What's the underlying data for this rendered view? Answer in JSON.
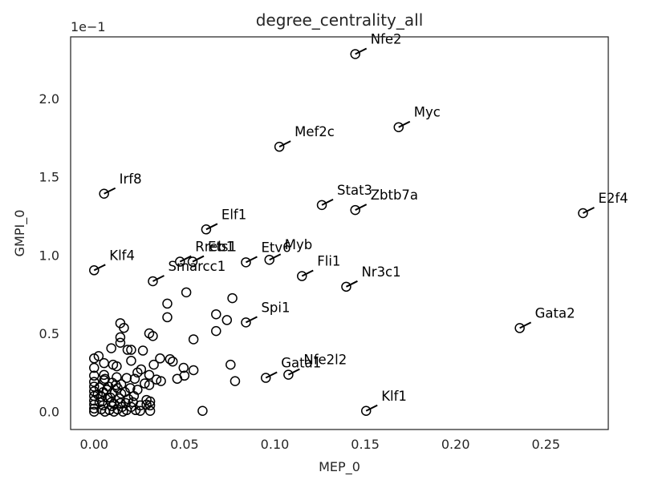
{
  "chart_data": {
    "type": "scatter",
    "title": "degree_centrality_all",
    "xlabel": "MEP_0",
    "ylabel": "GMPI_0",
    "y_offset_text": "1e−1",
    "xlim": [
      -0.013,
      0.2845
    ],
    "ylim": [
      -0.0114,
      0.2394
    ],
    "x_ticks": [
      0.0,
      0.05,
      0.1,
      0.15,
      0.2,
      0.25
    ],
    "x_tick_labels": [
      "0.00",
      "0.05",
      "0.10",
      "0.15",
      "0.20",
      "0.25"
    ],
    "y_ticks": [
      0.0,
      0.05,
      0.1,
      0.15,
      0.2
    ],
    "y_tick_labels": [
      "0.0",
      "0.5",
      "1.0",
      "1.5",
      "2.0"
    ],
    "grid": false,
    "marker": "open-circle",
    "marker_color": "#000000",
    "labeled_points": [
      {
        "label": "Nfe2",
        "x": 0.1445,
        "y": 0.2284
      },
      {
        "label": "Myc",
        "x": 0.1685,
        "y": 0.1817
      },
      {
        "label": "Mef2c",
        "x": 0.1025,
        "y": 0.1692
      },
      {
        "label": "Irf8",
        "x": 0.0055,
        "y": 0.1392
      },
      {
        "label": "Stat3",
        "x": 0.126,
        "y": 0.132
      },
      {
        "label": "Zbtb7a",
        "x": 0.1445,
        "y": 0.1288
      },
      {
        "label": "E2f4",
        "x": 0.2705,
        "y": 0.1268
      },
      {
        "label": "Elf1",
        "x": 0.062,
        "y": 0.1164
      },
      {
        "label": "Rreb1",
        "x": 0.0475,
        "y": 0.0958
      },
      {
        "label": "Ets1",
        "x": 0.0545,
        "y": 0.0958
      },
      {
        "label": "Etv6",
        "x": 0.084,
        "y": 0.0954
      },
      {
        "label": "Myb",
        "x": 0.097,
        "y": 0.097
      },
      {
        "label": "Klf4",
        "x": 0.0,
        "y": 0.0903
      },
      {
        "label": "Smarcc1",
        "x": 0.0325,
        "y": 0.0833
      },
      {
        "label": "Fli1",
        "x": 0.115,
        "y": 0.0866
      },
      {
        "label": "Nr3c1",
        "x": 0.1395,
        "y": 0.0798
      },
      {
        "label": "Spi1",
        "x": 0.084,
        "y": 0.057
      },
      {
        "label": "Gata2",
        "x": 0.2355,
        "y": 0.0534
      },
      {
        "label": "Gata1",
        "x": 0.095,
        "y": 0.0216
      },
      {
        "label": "Nfe2l2",
        "x": 0.1075,
        "y": 0.0236
      },
      {
        "label": "Klf1",
        "x": 0.1505,
        "y": 0.0005
      }
    ],
    "other_points": [
      [
        0.0405,
        0.069
      ],
      [
        0.051,
        0.0762
      ],
      [
        0.0765,
        0.0725
      ],
      [
        0.0675,
        0.0622
      ],
      [
        0.0405,
        0.0603
      ],
      [
        0.0735,
        0.0585
      ],
      [
        0.0145,
        0.0565
      ],
      [
        0.0165,
        0.0535
      ],
      [
        0.0305,
        0.05
      ],
      [
        0.0325,
        0.0483
      ],
      [
        0.0145,
        0.0475
      ],
      [
        0.0675,
        0.0515
      ],
      [
        0.055,
        0.0462
      ],
      [
        0.0145,
        0.044
      ],
      [
        0.0095,
        0.0405
      ],
      [
        0.0185,
        0.0395
      ],
      [
        0.0205,
        0.0395
      ],
      [
        0.027,
        0.039
      ],
      [
        0.0,
        0.034
      ],
      [
        0.0025,
        0.0355
      ],
      [
        0.0365,
        0.034
      ],
      [
        0.042,
        0.0335
      ],
      [
        0.0435,
        0.032
      ],
      [
        0.0205,
        0.0325
      ],
      [
        0.0055,
        0.031
      ],
      [
        0.0105,
        0.03
      ],
      [
        0.0125,
        0.029
      ],
      [
        0.033,
        0.03
      ],
      [
        0.0,
        0.028
      ],
      [
        0.0495,
        0.028
      ],
      [
        0.026,
        0.027
      ],
      [
        0.055,
        0.0265
      ],
      [
        0.024,
        0.025
      ],
      [
        0.0305,
        0.0235
      ],
      [
        0.0755,
        0.03
      ],
      [
        0.0,
        0.023
      ],
      [
        0.0055,
        0.0235
      ],
      [
        0.0125,
        0.022
      ],
      [
        0.018,
        0.0215
      ],
      [
        0.0225,
        0.021
      ],
      [
        0.05,
        0.023
      ],
      [
        0.046,
        0.021
      ],
      [
        0.078,
        0.0195
      ],
      [
        0.0345,
        0.0205
      ],
      [
        0.037,
        0.0195
      ],
      [
        0.0305,
        0.017
      ],
      [
        0.028,
        0.018
      ],
      [
        0.0,
        0.019
      ],
      [
        0.0055,
        0.02
      ],
      [
        0.01,
        0.0185
      ],
      [
        0.015,
        0.0175
      ],
      [
        0.0,
        0.016
      ],
      [
        0.003,
        0.0155
      ],
      [
        0.008,
        0.016
      ],
      [
        0.013,
        0.015
      ],
      [
        0.02,
        0.015
      ],
      [
        0.024,
        0.014
      ],
      [
        0.0,
        0.013
      ],
      [
        0.005,
        0.0125
      ],
      [
        0.01,
        0.012
      ],
      [
        0.015,
        0.0115
      ],
      [
        0.0,
        0.01
      ],
      [
        0.004,
        0.0095
      ],
      [
        0.009,
        0.009
      ],
      [
        0.014,
        0.0085
      ],
      [
        0.019,
        0.008
      ],
      [
        0.0,
        0.007
      ],
      [
        0.0045,
        0.0065
      ],
      [
        0.0095,
        0.006
      ],
      [
        0.0145,
        0.0055
      ],
      [
        0.029,
        0.0075
      ],
      [
        0.031,
        0.0065
      ],
      [
        0.0,
        0.0045
      ],
      [
        0.005,
        0.004
      ],
      [
        0.01,
        0.0035
      ],
      [
        0.0155,
        0.003
      ],
      [
        0.0205,
        0.003
      ],
      [
        0.0255,
        0.004
      ],
      [
        0.029,
        0.0045
      ],
      [
        0.031,
        0.004
      ],
      [
        0.0,
        0.002
      ],
      [
        0.004,
        0.0015
      ],
      [
        0.0085,
        0.001
      ],
      [
        0.013,
        0.0015
      ],
      [
        0.018,
        0.001
      ],
      [
        0.023,
        0.001
      ],
      [
        0.0255,
        0.0005
      ],
      [
        0.031,
        0.0005
      ],
      [
        0.06,
        0.0005
      ],
      [
        0.0,
        0.0
      ],
      [
        0.006,
        0.0
      ],
      [
        0.011,
        0.0
      ],
      [
        0.016,
        0.0
      ],
      [
        0.002,
        0.011
      ],
      [
        0.007,
        0.014
      ],
      [
        0.012,
        0.017
      ],
      [
        0.017,
        0.0125
      ],
      [
        0.022,
        0.01
      ],
      [
        0.006,
        0.021
      ],
      [
        0.011,
        0.005
      ],
      [
        0.003,
        0.006
      ],
      [
        0.0075,
        0.009
      ],
      [
        0.0175,
        0.0055
      ],
      [
        0.0215,
        0.006
      ]
    ]
  }
}
